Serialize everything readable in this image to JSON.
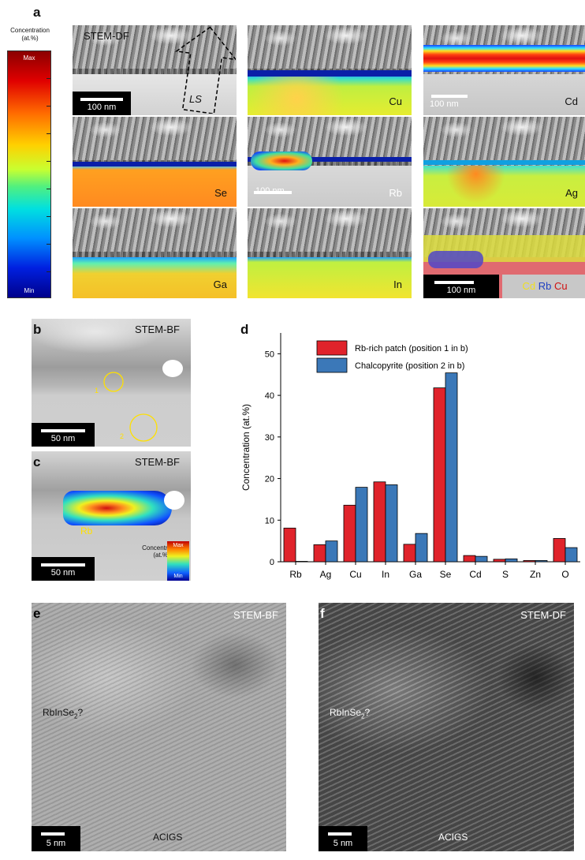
{
  "panel_a": {
    "letter": "a",
    "colorbar": {
      "title_line1": "Concentration",
      "title_line2": "(at.%)",
      "max": "Max",
      "min": "Min"
    },
    "tiles": {
      "stem_df": {
        "label": "STEM-DF",
        "scale": "100 nm",
        "ls": "LS"
      },
      "cu": {
        "label": "Cu"
      },
      "cd": {
        "label": "Cd",
        "scale": "100 nm"
      },
      "se": {
        "label": "Se"
      },
      "rb": {
        "label": "Rb",
        "scale": "100 nm"
      },
      "ag": {
        "label": "Ag"
      },
      "ga": {
        "label": "Ga"
      },
      "in": {
        "label": "In"
      },
      "overlay": {
        "scale": "100 nm",
        "legend_cd": "Cd",
        "legend_rb": "Rb",
        "legend_cu": "Cu"
      }
    }
  },
  "panel_b": {
    "letter": "b",
    "label": "STEM-BF",
    "scale": "50 nm",
    "pos1": "1",
    "pos2": "2"
  },
  "panel_c": {
    "letter": "c",
    "label": "STEM-BF",
    "scale": "50 nm",
    "rb": "Rb",
    "cb_title1": "Concentration",
    "cb_title2": "(at.%)",
    "cb_max": "Max",
    "cb_min": "Min"
  },
  "panel_d": {
    "letter": "d"
  },
  "panel_e": {
    "letter": "e",
    "label": "STEM-BF",
    "phase": "RbInSe",
    "phase_sub": "2",
    "phase_q": "?",
    "acigs": "ACIGS",
    "scale": "5 nm"
  },
  "panel_f": {
    "letter": "f",
    "label": "STEM-DF",
    "phase": "RbInSe",
    "phase_sub": "2",
    "phase_q": "?",
    "acigs": "ACIGS",
    "scale": "5 nm"
  },
  "colors": {
    "rb_rich": "#e0232b",
    "chalcopyrite": "#3b78b8"
  },
  "chart_data": {
    "type": "bar",
    "ylabel": "Concentration (at.%)",
    "xlabel": "",
    "ylim": [
      0,
      55
    ],
    "yticks": [
      0,
      10,
      20,
      30,
      40,
      50
    ],
    "categories": [
      "Rb",
      "Ag",
      "Cu",
      "In",
      "Ga",
      "Se",
      "Cd",
      "S",
      "Zn",
      "O"
    ],
    "series": [
      {
        "name": "Rb-rich patch (position 1 in b)",
        "values": [
          8.1,
          4.1,
          13.6,
          19.2,
          4.2,
          41.8,
          1.5,
          0.6,
          0.3,
          5.6
        ]
      },
      {
        "name": "Chalcopyrite (position 2 in b)",
        "values": [
          0.1,
          5.0,
          17.9,
          18.5,
          6.8,
          45.4,
          1.3,
          0.7,
          0.3,
          3.4
        ]
      }
    ],
    "legend": "top-left"
  }
}
